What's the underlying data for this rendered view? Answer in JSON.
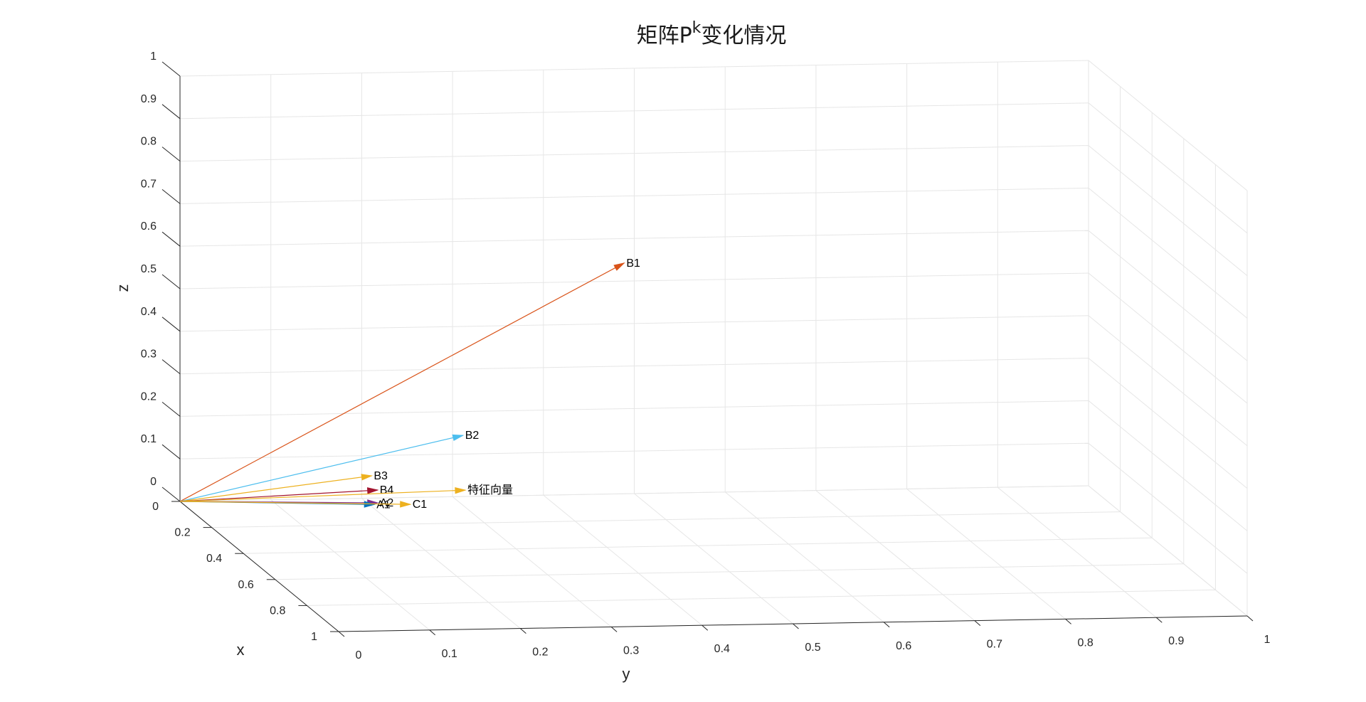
{
  "chart_data": {
    "type": "3d-vector",
    "title_main": "矩阵P",
    "title_sup": "k",
    "title_tail": "变化情况",
    "xlabel": "x",
    "ylabel": "y",
    "zlabel": "z",
    "xlim": [
      0,
      1
    ],
    "ylim": [
      0,
      1
    ],
    "zlim": [
      0,
      1
    ],
    "xticks": [
      "0",
      "0.2",
      "0.4",
      "0.6",
      "0.8",
      "1"
    ],
    "yticks": [
      "0",
      "0.1",
      "0.2",
      "0.3",
      "0.4",
      "0.5",
      "0.6",
      "0.7",
      "0.8",
      "0.9",
      "1"
    ],
    "zticks": [
      "0",
      "0.1",
      "0.2",
      "0.3",
      "0.4",
      "0.5",
      "0.6",
      "0.7",
      "0.8",
      "0.9",
      "1"
    ],
    "grid": true,
    "vectors": [
      {
        "label": "B1",
        "x": 0.28,
        "y": 0.44,
        "z": 0.63,
        "color": "#D95319"
      },
      {
        "label": "B2",
        "x": 0.18,
        "y": 0.28,
        "z": 0.2,
        "color": "#4DBEEE"
      },
      {
        "label": "B3",
        "x": 0.12,
        "y": 0.19,
        "z": 0.09,
        "color": "#EDB120"
      },
      {
        "label": "B4",
        "x": 0.1,
        "y": 0.2,
        "z": 0.05,
        "color": "#A2142F"
      },
      {
        "label": "A2",
        "x": 0.1,
        "y": 0.2,
        "z": 0.02,
        "color": "#7E2F8E"
      },
      {
        "label": "A1",
        "x": 0.08,
        "y": 0.2,
        "z": 0.01,
        "color": "#0072BD"
      },
      {
        "label": "C1",
        "x": 0.02,
        "y": 0.25,
        "z": -0.01,
        "color": "#EDB120"
      },
      {
        "label": "特征向量",
        "x": 0.08,
        "y": 0.3,
        "z": 0.04,
        "color": "#EDB120"
      }
    ]
  }
}
